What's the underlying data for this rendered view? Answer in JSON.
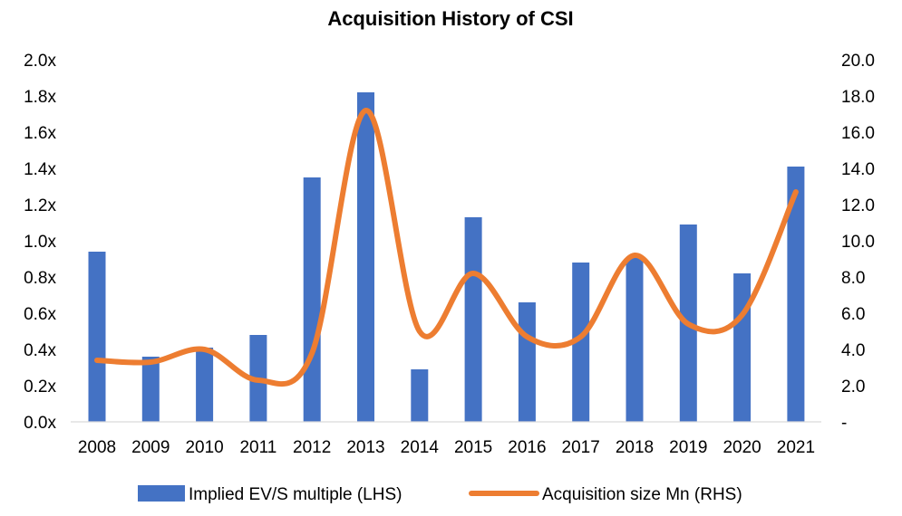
{
  "chart_data": {
    "type": "bar+line",
    "title": "Acquisition History of CSI",
    "categories": [
      "2008",
      "2009",
      "2010",
      "2011",
      "2012",
      "2013",
      "2014",
      "2015",
      "2016",
      "2017",
      "2018",
      "2019",
      "2020",
      "2021"
    ],
    "series": [
      {
        "name": "Implied EV/S multiple (LHS)",
        "type": "bar",
        "axis": "left",
        "color": "#4472C4",
        "values": [
          0.94,
          0.36,
          0.41,
          0.48,
          1.35,
          1.82,
          0.29,
          1.13,
          0.66,
          0.88,
          0.91,
          1.09,
          0.82,
          1.41
        ]
      },
      {
        "name": "Acquisition size Mn (RHS)",
        "type": "line",
        "axis": "right",
        "color": "#ED7D31",
        "values": [
          3.4,
          3.3,
          4.0,
          2.3,
          3.8,
          17.2,
          5.0,
          8.2,
          4.7,
          4.7,
          9.2,
          5.4,
          5.9,
          12.7
        ]
      }
    ],
    "left_axis": {
      "ylim": [
        0,
        2.0
      ],
      "ticks": [
        "0.0x",
        "0.2x",
        "0.4x",
        "0.6x",
        "0.8x",
        "1.0x",
        "1.2x",
        "1.4x",
        "1.6x",
        "1.8x",
        "2.0x"
      ]
    },
    "right_axis": {
      "ylim": [
        0,
        20
      ],
      "ticks": [
        "-",
        "2.0",
        "4.0",
        "6.0",
        "8.0",
        "10.0",
        "12.0",
        "14.0",
        "16.0",
        "18.0",
        "20.0"
      ]
    },
    "legend": {
      "position": "bottom",
      "entries": [
        "Implied EV/S multiple (LHS)",
        "Acquisition size Mn (RHS)"
      ]
    },
    "grid": false
  }
}
